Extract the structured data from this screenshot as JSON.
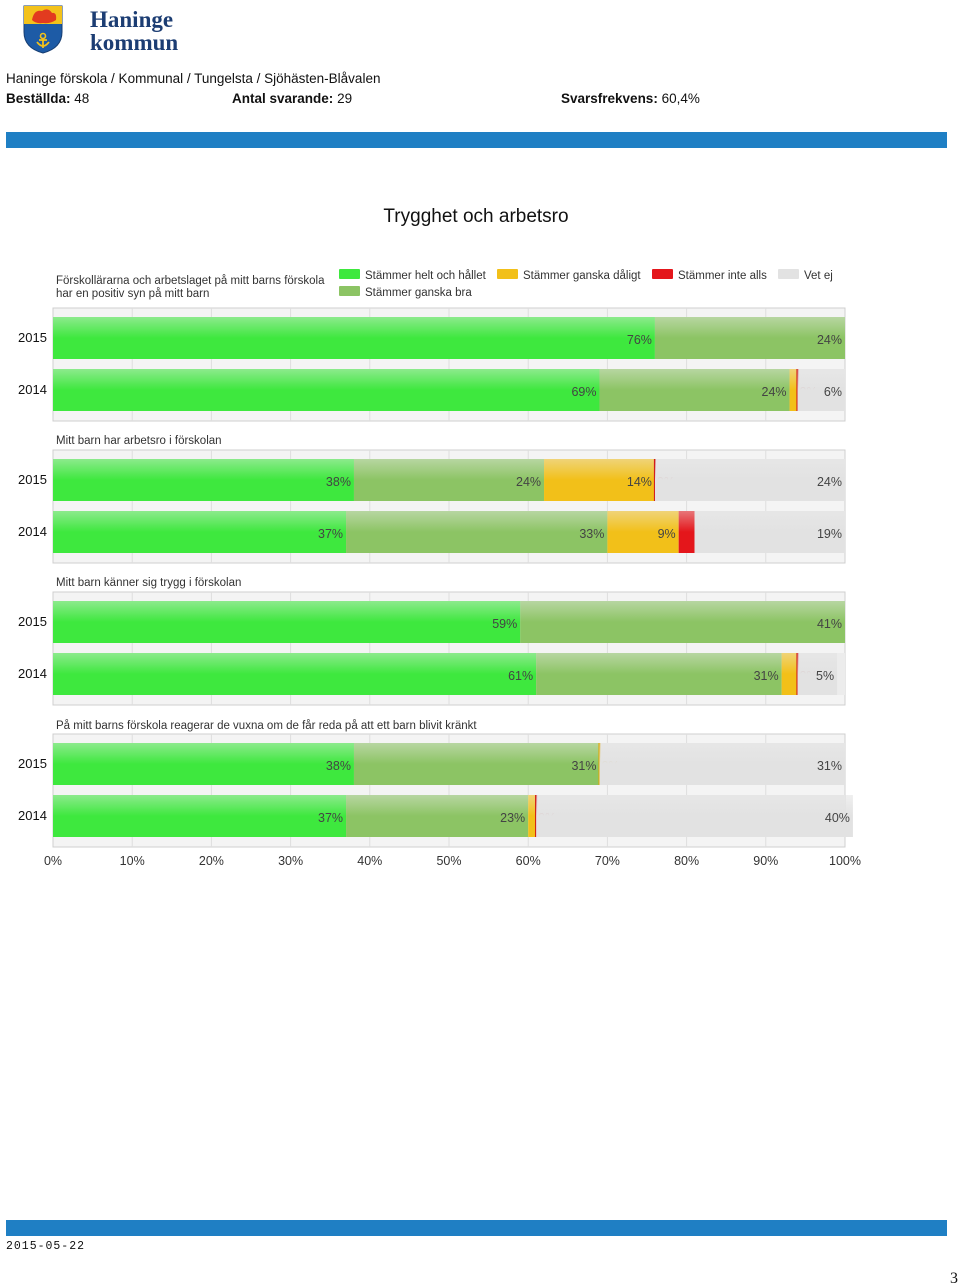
{
  "header": {
    "logo_line1": "Haninge",
    "logo_line2": "kommun",
    "breadcrumb": "Haninge förskola / Kommunal / Tungelsta / Sjöhästen-Blåvalen",
    "ordered_label": "Beställda:",
    "ordered_value": "48",
    "respondents_label": "Antal svarande:",
    "respondents_value": "29",
    "rate_label": "Svarsfrekvens:",
    "rate_value": "60,4%"
  },
  "page_title": "Trygghet och arbetsro",
  "footer": {
    "date": "2015-05-22",
    "page_number": "3"
  },
  "colors": {
    "helt": "#3ee83e",
    "ganska_bra": "#8cc464",
    "ganska_daligt": "#f2c019",
    "inte_alls": "#e4161b",
    "vet_ej": "#e2e2e2",
    "header_bar": "#1f7fc4"
  },
  "chart_data": {
    "type": "bar",
    "orientation": "horizontal-stacked",
    "xlim": [
      0,
      100
    ],
    "x_ticks": [
      "0%",
      "10%",
      "20%",
      "30%",
      "40%",
      "50%",
      "60%",
      "70%",
      "80%",
      "90%",
      "100%"
    ],
    "legend": [
      {
        "key": "helt",
        "label": "Stämmer helt och hållet"
      },
      {
        "key": "ganska_daligt",
        "label": "Stämmer ganska dåligt"
      },
      {
        "key": "inte_alls",
        "label": "Stämmer inte alls"
      },
      {
        "key": "vet_ej",
        "label": "Vet ej"
      },
      {
        "key": "ganska_bra",
        "label": "Stämmer ganska bra"
      }
    ],
    "groups": [
      {
        "title": "Förskollärarna och arbetslaget på mitt barns förskola har en positiv syn på mitt barn",
        "rows": [
          {
            "year": "2015",
            "values": [
              76,
              24,
              0,
              0,
              0
            ],
            "labels": [
              "76%",
              "24%",
              "",
              "",
              ""
            ]
          },
          {
            "year": "2014",
            "values": [
              69,
              24,
              1,
              0,
              6
            ],
            "labels": [
              "69%",
              "24%",
              "",
              "0%",
              "6%"
            ]
          }
        ]
      },
      {
        "title": "Mitt barn har arbetsro i förskolan",
        "rows": [
          {
            "year": "2015",
            "values": [
              38,
              24,
              14,
              0,
              24
            ],
            "labels": [
              "38%",
              "24%",
              "14%",
              "0%",
              "24%"
            ]
          },
          {
            "year": "2014",
            "values": [
              37,
              33,
              9,
              2,
              19
            ],
            "labels": [
              "37%",
              "33%",
              "9%",
              "",
              "19%"
            ]
          }
        ]
      },
      {
        "title": "Mitt barn känner sig trygg i förskolan",
        "rows": [
          {
            "year": "2015",
            "values": [
              59,
              41,
              0,
              0,
              0
            ],
            "labels": [
              "59%",
              "41%",
              "",
              "",
              ""
            ]
          },
          {
            "year": "2014",
            "values": [
              61,
              31,
              2,
              0,
              5
            ],
            "labels": [
              "61%",
              "31%",
              "",
              "0%",
              "5%"
            ]
          }
        ]
      },
      {
        "title": "På mitt barns förskola reagerar de vuxna om de får reda på att ett barn blivit kränkt",
        "rows": [
          {
            "year": "2015",
            "values": [
              38,
              31,
              0,
              0,
              31
            ],
            "labels": [
              "38%",
              "31%",
              "0%",
              "",
              "31%"
            ]
          },
          {
            "year": "2014",
            "values": [
              37,
              23,
              1,
              0,
              40
            ],
            "labels": [
              "37%",
              "23%",
              "",
              "0%",
              "40%"
            ]
          }
        ]
      }
    ]
  }
}
